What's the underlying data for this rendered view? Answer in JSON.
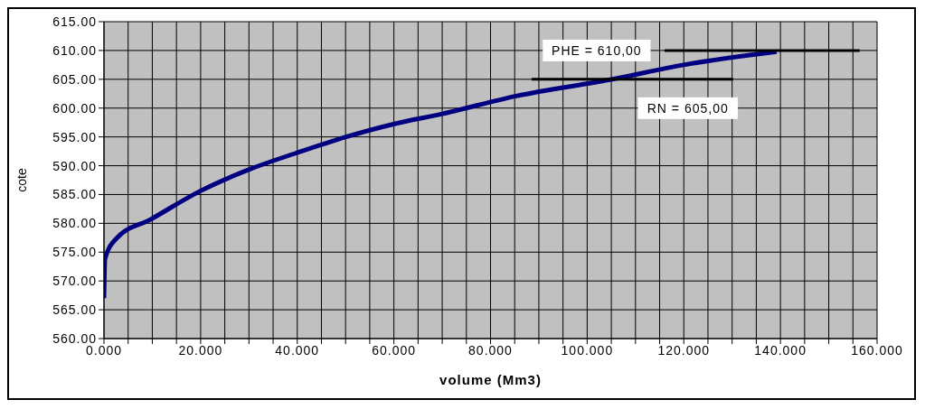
{
  "chart_data": {
    "type": "line",
    "xlabel": "volume (Mm3)",
    "ylabel": "cote",
    "xlim": [
      0,
      160
    ],
    "ylim": [
      560,
      615
    ],
    "xticks": [
      {
        "value": 0,
        "label": "0.000"
      },
      {
        "value": 5,
        "label": null
      },
      {
        "value": 10,
        "label": null
      },
      {
        "value": 15,
        "label": null
      },
      {
        "value": 20,
        "label": "20.000"
      },
      {
        "value": 25,
        "label": null
      },
      {
        "value": 30,
        "label": null
      },
      {
        "value": 35,
        "label": null
      },
      {
        "value": 40,
        "label": "40.000"
      },
      {
        "value": 45,
        "label": null
      },
      {
        "value": 50,
        "label": null
      },
      {
        "value": 55,
        "label": null
      },
      {
        "value": 60,
        "label": "60.000"
      },
      {
        "value": 65,
        "label": null
      },
      {
        "value": 70,
        "label": null
      },
      {
        "value": 75,
        "label": null
      },
      {
        "value": 80,
        "label": "80.000"
      },
      {
        "value": 85,
        "label": null
      },
      {
        "value": 90,
        "label": null
      },
      {
        "value": 95,
        "label": null
      },
      {
        "value": 100,
        "label": "100.000"
      },
      {
        "value": 105,
        "label": null
      },
      {
        "value": 110,
        "label": null
      },
      {
        "value": 115,
        "label": null
      },
      {
        "value": 120,
        "label": "120.000"
      },
      {
        "value": 125,
        "label": null
      },
      {
        "value": 130,
        "label": null
      },
      {
        "value": 135,
        "label": null
      },
      {
        "value": 140,
        "label": "140.000"
      },
      {
        "value": 145,
        "label": null
      },
      {
        "value": 150,
        "label": null
      },
      {
        "value": 155,
        "label": null
      },
      {
        "value": 160,
        "label": "160.000"
      }
    ],
    "yticks": [
      {
        "value": 560,
        "label": "560.00"
      },
      {
        "value": 565,
        "label": "565.00"
      },
      {
        "value": 570,
        "label": "570.00"
      },
      {
        "value": 575,
        "label": "575.00"
      },
      {
        "value": 580,
        "label": "580.00"
      },
      {
        "value": 585,
        "label": "585.00"
      },
      {
        "value": 590,
        "label": "590.00"
      },
      {
        "value": 595,
        "label": "595.00"
      },
      {
        "value": 600,
        "label": "600.00"
      },
      {
        "value": 605,
        "label": "605.00"
      },
      {
        "value": 610,
        "label": "610.00"
      },
      {
        "value": 615,
        "label": "615.00"
      }
    ],
    "grid": true,
    "marker": "none",
    "line_style": "solid",
    "series": [
      {
        "color": "#000080",
        "x": [
          0,
          0.2,
          2.6,
          9.7,
          19.9,
          30.2,
          39.8,
          50.1,
          60.3,
          70,
          85.3,
          105.2,
          119.9,
          139.2
        ],
        "values": [
          567,
          573.8,
          577.4,
          580.7,
          585.6,
          589.4,
          592.2,
          595,
          597.3,
          599,
          602.1,
          605,
          607.5,
          609.8
        ]
      },
      {
        "color": "#000000",
        "x": [
          116,
          156.4
        ],
        "values": [
          610,
          610
        ]
      },
      {
        "color": "#000000",
        "x": [
          88.5,
          130.2
        ],
        "values": [
          605,
          605
        ]
      }
    ],
    "annotations": [
      "PHE = 610,00",
      "RN = 605,00"
    ]
  }
}
